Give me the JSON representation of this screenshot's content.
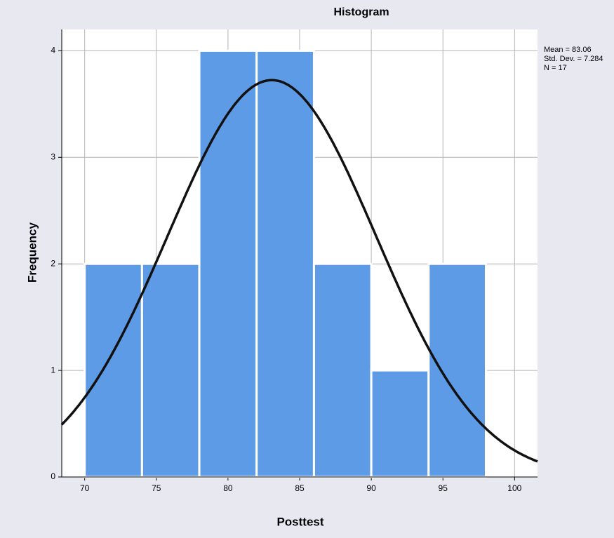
{
  "chart_data": {
    "type": "histogram",
    "title": "Histogram",
    "x_label": "Posttest",
    "y_label": "Frequency",
    "bins": [
      70,
      74,
      78,
      82,
      86,
      90,
      94,
      98
    ],
    "values": [
      2,
      2,
      4,
      4,
      2,
      1,
      2
    ],
    "color": "#5e9be6",
    "xlim": [
      68.4,
      101.6
    ],
    "xticks": [
      70,
      75,
      80,
      85,
      90,
      95,
      100
    ],
    "ylim": [
      0,
      4.2
    ],
    "yticks": [
      0,
      1,
      2,
      3,
      4
    ],
    "grid": true,
    "normal_curve": true,
    "stats": [
      {
        "value": 83.06,
        "label": "Mean = 83.06"
      },
      {
        "value": 7.284,
        "label": "Std. Dev. = 7.284"
      },
      {
        "value": 17,
        "label": "N = 17"
      }
    ]
  }
}
